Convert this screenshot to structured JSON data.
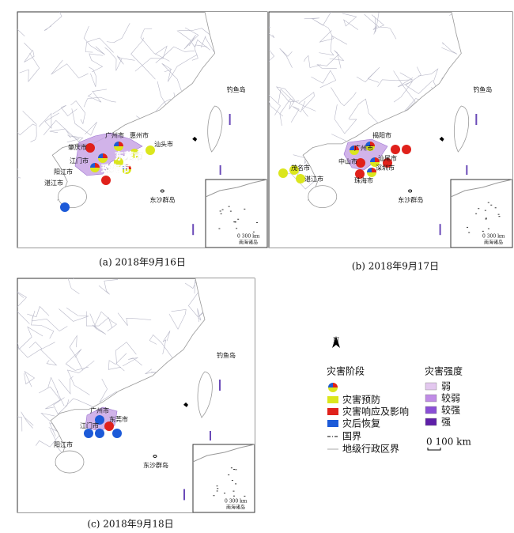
{
  "panels": [
    {
      "caption": "(a) 2018年9月16日",
      "cities": [
        "肇庆市",
        "广州市",
        "惠州市",
        "汕头市",
        "江门市",
        "东莞市",
        "珠海市",
        "阳江市",
        "湛江市"
      ]
    },
    {
      "caption": "(b) 2018年9月17日",
      "cities": [
        "揭阳市",
        "广州市",
        "汕尾市",
        "中山市",
        "深圳市",
        "珠海市",
        "茂名市",
        "湛江市"
      ]
    },
    {
      "caption": "(c) 2018年9月18日",
      "cities": [
        "广州市",
        "东莞市",
        "江门市",
        "阳江市"
      ]
    }
  ],
  "places": {
    "diaoyu": "钓鱼岛",
    "dongsha": "东沙群岛",
    "nanhai": "南海诸岛",
    "inset_scale": "0  300 km"
  },
  "legend": {
    "north": "N",
    "stage_title": "灾害阶段",
    "stages": [
      "灾害预防",
      "灾害响应及影响",
      "灾后恢复"
    ],
    "lines": [
      "国界",
      "地级行政区界"
    ],
    "intensity_title": "灾害强度",
    "intensities": [
      "弱",
      "较弱",
      "较强",
      "强"
    ],
    "scale": "0  100 km"
  }
}
